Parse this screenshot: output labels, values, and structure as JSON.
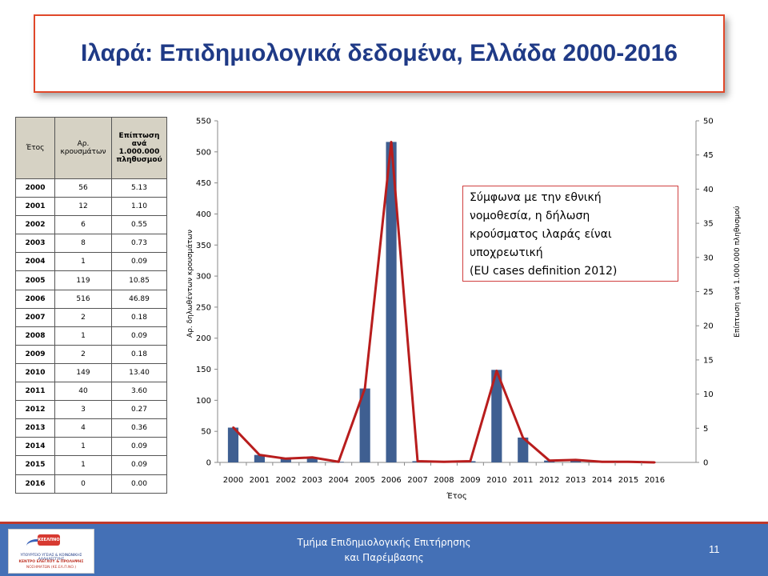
{
  "title": "Ιλαρά: Επιδημιολογικά δεδομένα, Ελλάδα 2000-2016",
  "table": {
    "headers": [
      "Έτος",
      "Αρ. κρουσμάτων",
      "Επίπτωση ανά 1.000.000 πληθυσμού"
    ],
    "rows": [
      [
        "2000",
        "56",
        "5.13"
      ],
      [
        "2001",
        "12",
        "1.10"
      ],
      [
        "2002",
        "6",
        "0.55"
      ],
      [
        "2003",
        "8",
        "0.73"
      ],
      [
        "2004",
        "1",
        "0.09"
      ],
      [
        "2005",
        "119",
        "10.85"
      ],
      [
        "2006",
        "516",
        "46.89"
      ],
      [
        "2007",
        "2",
        "0.18"
      ],
      [
        "2008",
        "1",
        "0.09"
      ],
      [
        "2009",
        "2",
        "0.18"
      ],
      [
        "2010",
        "149",
        "13.40"
      ],
      [
        "2011",
        "40",
        "3.60"
      ],
      [
        "2012",
        "3",
        "0.27"
      ],
      [
        "2013",
        "4",
        "0.36"
      ],
      [
        "2014",
        "1",
        "0.09"
      ],
      [
        "2015",
        "1",
        "0.09"
      ],
      [
        "2016",
        "0",
        "0.00"
      ]
    ]
  },
  "note": {
    "lines": [
      "Σύμφωνα με την εθνική",
      "νομοθεσία, η δήλωση",
      "κρούσματος ιλαράς είναι",
      "υποχρεωτική",
      "(EU cases definition 2012)"
    ]
  },
  "footer": {
    "text_line1": "Τμήμα Επιδημιολογικής Επιτήρησης",
    "text_line2": "και Παρέμβασης",
    "page_number": "11",
    "logo_text": [
      "ΚΕΕΛΠΝΟ",
      "ΥΠΟΥΡΓΕΙΟ ΥΓΕΙΑΣ & ΚΟΙΝΩΝΙΚΗΣ ΑΛΛΗΛΕΓΓΥΗΣ",
      "ΚΕΝΤΡΟ ΕΛΕΓΧΟΥ & ΠΡΟΛΗΨΗΣ",
      "ΝΟΣΗΜΑΤΩΝ (ΚΕ.ΕΛ.Π.ΝΟ.)"
    ]
  },
  "colors": {
    "bar": "#3f5f91",
    "line": "#b81d1d",
    "title": "#1f3a86",
    "footer": "#4470b6"
  },
  "chart_data": {
    "type": "bar+line",
    "categories": [
      "2000",
      "2001",
      "2002",
      "2003",
      "2004",
      "2005",
      "2006",
      "2007",
      "2008",
      "2009",
      "2010",
      "2011",
      "2012",
      "2013",
      "2014",
      "2015",
      "2016"
    ],
    "series": [
      {
        "type": "bar",
        "axis": "left",
        "values": [
          56,
          12,
          6,
          8,
          1,
          119,
          516,
          2,
          1,
          2,
          149,
          40,
          3,
          4,
          1,
          1,
          0
        ]
      },
      {
        "type": "line",
        "axis": "right",
        "values": [
          5.13,
          1.1,
          0.55,
          0.73,
          0.09,
          10.85,
          46.89,
          0.18,
          0.09,
          0.18,
          13.4,
          3.6,
          0.27,
          0.36,
          0.09,
          0.09,
          0.0
        ]
      }
    ],
    "xlabel": "Έτος",
    "ylabel_left": "Αρ. δηλωθέντων κρουσμάτων",
    "ylabel_right": "Επίπτωση ανά 1.000.000 πληθυσμού",
    "ylim_left": [
      0,
      550
    ],
    "yticks_left": [
      0,
      50,
      100,
      150,
      200,
      250,
      300,
      350,
      400,
      450,
      500,
      550
    ],
    "ylim_right": [
      0,
      50
    ],
    "yticks_right": [
      0,
      5,
      10,
      15,
      20,
      25,
      30,
      35,
      40,
      45,
      50
    ],
    "grid": false
  }
}
